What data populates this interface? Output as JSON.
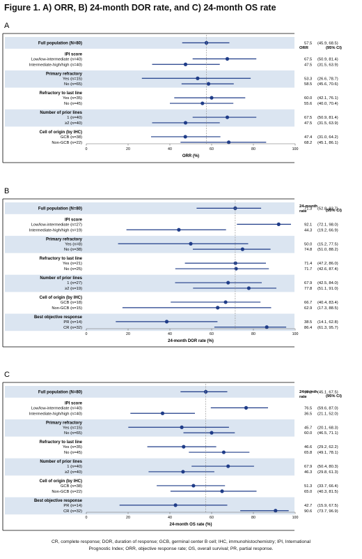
{
  "title": "Figure 1. A) ORR, B) 24-month DOR rate, and C) 24-month OS rate",
  "footnote": [
    "CR, complete response; DOR, duration of response; GCB, germinal center B cell; IHC, immunohistochemistry; IPI, International",
    "Prognostic Index; ORR, objective response rate; OS, overall survival; PR, partial response."
  ],
  "colors": {
    "band": "#dbe5f1",
    "marker": "#1f3c88",
    "frame": "#000000",
    "reference_line": "#999999"
  },
  "chart_data": [
    {
      "type": "forest",
      "panel": "A",
      "xlabel": "ORR (%)",
      "xlim": [
        0,
        100
      ],
      "xticks": [
        0,
        20,
        40,
        60,
        80,
        100
      ],
      "reference_value": 57.5,
      "col_headers": [
        "ORR",
        "(95% CI)"
      ],
      "groups": [
        {
          "title": "Full population (N=80)",
          "rows": [
            {
              "label": "",
              "estimate": 57.5,
              "ci": [
                45.9,
                68.5
              ],
              "value_text": "57.5",
              "ci_text": "(45.9, 68.5)"
            }
          ]
        },
        {
          "title": "IPI score",
          "rows": [
            {
              "label": "Low/low-intermediate (n=40)",
              "estimate": 67.5,
              "ci": [
                50.9,
                81.4
              ],
              "value_text": "67.5",
              "ci_text": "(50.9, 81.4)"
            },
            {
              "label": "Intermediate-high/high (n=40)",
              "estimate": 47.5,
              "ci": [
                31.5,
                63.9
              ],
              "value_text": "47.5",
              "ci_text": "(31.5, 63.9)"
            }
          ]
        },
        {
          "title": "Primary refractory",
          "rows": [
            {
              "label": "Yes (n=15)",
              "estimate": 53.3,
              "ci": [
                26.6,
                78.7
              ],
              "value_text": "53.3",
              "ci_text": "(26.6, 78.7)"
            },
            {
              "label": "No (n=65)",
              "estimate": 58.5,
              "ci": [
                45.6,
                70.6
              ],
              "value_text": "58.5",
              "ci_text": "(45.6, 70.6)"
            }
          ]
        },
        {
          "title": "Refractory to last line",
          "rows": [
            {
              "label": "Yes (n=35)",
              "estimate": 60.0,
              "ci": [
                42.1,
                76.1
              ],
              "value_text": "60.0",
              "ci_text": "(42.1, 76.1)"
            },
            {
              "label": "No (n=45)",
              "estimate": 55.6,
              "ci": [
                40.0,
                70.4
              ],
              "value_text": "55.6",
              "ci_text": "(40.0, 70.4)"
            }
          ]
        },
        {
          "title": "Number of prior lines",
          "rows": [
            {
              "label": "1 (n=40)",
              "estimate": 67.5,
              "ci": [
                50.9,
                81.4
              ],
              "value_text": "67.5",
              "ci_text": "(50.9, 81.4)"
            },
            {
              "label": "≥2 (n=40)",
              "estimate": 47.5,
              "ci": [
                31.5,
                63.9
              ],
              "value_text": "47.5",
              "ci_text": "(31.5, 63.9)"
            }
          ]
        },
        {
          "title": "Cell of origin (by IHC)",
          "rows": [
            {
              "label": "GCB (n=38)",
              "estimate": 47.4,
              "ci": [
                31.0,
                64.2
              ],
              "value_text": "47.4",
              "ci_text": "(31.0, 64.2)"
            },
            {
              "label": "Non-GCB (n=22)",
              "estimate": 68.2,
              "ci": [
                45.1,
                86.1
              ],
              "value_text": "68.2",
              "ci_text": "(45.1, 86.1)"
            }
          ]
        }
      ]
    },
    {
      "type": "forest",
      "panel": "B",
      "xlabel": "24-month DOR rate (%)",
      "xlim": [
        0,
        100
      ],
      "xticks": [
        0,
        20,
        40,
        60,
        80,
        100
      ],
      "reference_value": 71.3,
      "col_headers": [
        "24-month rate",
        "(95% CI)"
      ],
      "groups": [
        {
          "title": "Full population (N=80)",
          "rows": [
            {
              "label": "",
              "estimate": 71.3,
              "ci": [
                52.8,
                83.7
              ],
              "value_text": "71.3",
              "ci_text": "(52.8, 83.7)"
            }
          ]
        },
        {
          "title": "IPI score",
          "rows": [
            {
              "label": "Low/low-intermediate (n=27)",
              "estimate": 92.1,
              "ci": [
                72.1,
                98.0
              ],
              "value_text": "92.1",
              "ci_text": "(72.1, 98.0)"
            },
            {
              "label": "Intermediate-high/high (n=19)",
              "estimate": 44.3,
              "ci": [
                19.2,
                66.9
              ],
              "value_text": "44.3",
              "ci_text": "(19.2, 66.9)"
            }
          ]
        },
        {
          "title": "Primary refractory",
          "rows": [
            {
              "label": "Yes (n=8)",
              "estimate": 50.0,
              "ci": [
                15.2,
                77.5
              ],
              "value_text": "50.0",
              "ci_text": "(15.2, 77.5)"
            },
            {
              "label": "No (n=38)",
              "estimate": 74.8,
              "ci": [
                51.0,
                88.2
              ],
              "value_text": "74.8",
              "ci_text": "(51.0, 88.2)"
            }
          ]
        },
        {
          "title": "Refractory to last line",
          "rows": [
            {
              "label": "Yes (n=21)",
              "estimate": 71.4,
              "ci": [
                47.2,
                86.0
              ],
              "value_text": "71.4",
              "ci_text": "(47.2, 86.0)"
            },
            {
              "label": "No (n=25)",
              "estimate": 71.7,
              "ci": [
                42.6,
                87.4
              ],
              "value_text": "71.7",
              "ci_text": "(42.6, 87.4)"
            }
          ]
        },
        {
          "title": "Number of prior lines",
          "rows": [
            {
              "label": "1 (n=27)",
              "estimate": 67.9,
              "ci": [
                42.5,
                84.0
              ],
              "value_text": "67.9",
              "ci_text": "(42.5, 84.0)"
            },
            {
              "label": "≥2 (n=19)",
              "estimate": 77.8,
              "ci": [
                51.1,
                91.0
              ],
              "value_text": "77.8",
              "ci_text": "(51.1, 91.0)"
            }
          ]
        },
        {
          "title": "Cell of origin (by IHC)",
          "rows": [
            {
              "label": "GCB (n=18)",
              "estimate": 66.7,
              "ci": [
                40.4,
                83.4
              ],
              "value_text": "66.7",
              "ci_text": "(40.4, 83.4)"
            },
            {
              "label": "Non-GCB (n=15)",
              "estimate": 62.9,
              "ci": [
                17.3,
                88.5
              ],
              "value_text": "62.9",
              "ci_text": "(17.3, 88.5)"
            }
          ]
        },
        {
          "title": "Best objective response",
          "rows": [
            {
              "label": "PR (n=14)",
              "estimate": 38.5,
              "ci": [
                14.1,
                62.8
              ],
              "value_text": "38.5",
              "ci_text": "(14.1, 62.8)"
            },
            {
              "label": "CR (n=32)",
              "estimate": 86.4,
              "ci": [
                61.3,
                95.7
              ],
              "value_text": "86.4",
              "ci_text": "(61.3, 95.7)"
            }
          ]
        }
      ]
    },
    {
      "type": "forest",
      "panel": "C",
      "xlabel": "24-month OS rate (%)",
      "xlim": [
        0,
        100
      ],
      "xticks": [
        0,
        20,
        40,
        60,
        80,
        100
      ],
      "reference_value": 57.2,
      "col_headers": [
        "24-month rate",
        "(95% CI)"
      ],
      "groups": [
        {
          "title": "Full population (N=80)",
          "rows": [
            {
              "label": "",
              "estimate": 57.2,
              "ci": [
                45.1,
                67.5
              ],
              "value_text": "57.2",
              "ci_text": "(45.1, 67.5)"
            }
          ]
        },
        {
          "title": "IPI score",
          "rows": [
            {
              "label": "Low/low-intermediate (n=40)",
              "estimate": 76.5,
              "ci": [
                59.6,
                87.0
              ],
              "value_text": "76.5",
              "ci_text": "(59.6, 87.0)"
            },
            {
              "label": "Intermediate-high/high (n=40)",
              "estimate": 36.5,
              "ci": [
                21.1,
                52.0
              ],
              "value_text": "36.5",
              "ci_text": "(21.1, 52.0)"
            }
          ]
        },
        {
          "title": "Primary refractory",
          "rows": [
            {
              "label": "Yes (n=15)",
              "estimate": 45.7,
              "ci": [
                20.1,
                68.3
              ],
              "value_text": "45.7",
              "ci_text": "(20.1, 68.3)"
            },
            {
              "label": "No (n=65)",
              "estimate": 60.0,
              "ci": [
                46.5,
                71.1
              ],
              "value_text": "60.0",
              "ci_text": "(46.5, 71.1)"
            }
          ]
        },
        {
          "title": "Refractory to last line",
          "rows": [
            {
              "label": "Yes (n=35)",
              "estimate": 46.6,
              "ci": [
                29.2,
                62.2
              ],
              "value_text": "46.6",
              "ci_text": "(29.2, 62.2)"
            },
            {
              "label": "No (n=45)",
              "estimate": 65.8,
              "ci": [
                49.1,
                78.1
              ],
              "value_text": "65.8",
              "ci_text": "(49.1, 78.1)"
            }
          ]
        },
        {
          "title": "Number of prior lines",
          "rows": [
            {
              "label": "1 (n=40)",
              "estimate": 67.9,
              "ci": [
                50.4,
                80.3
              ],
              "value_text": "67.9",
              "ci_text": "(50.4, 80.3)"
            },
            {
              "label": "≥2 (n=40)",
              "estimate": 46.3,
              "ci": [
                29.8,
                61.3
              ],
              "value_text": "46.3",
              "ci_text": "(29.8, 61.3)"
            }
          ]
        },
        {
          "title": "Cell of origin (by IHC)",
          "rows": [
            {
              "label": "GCB (n=38)",
              "estimate": 51.3,
              "ci": [
                33.7,
                66.4
              ],
              "value_text": "51.3",
              "ci_text": "(33.7, 66.4)"
            },
            {
              "label": "Non-GCB (n=22)",
              "estimate": 65.0,
              "ci": [
                40.3,
                81.5
              ],
              "value_text": "65.0",
              "ci_text": "(40.3, 81.5)"
            }
          ]
        },
        {
          "title": "Best objective response",
          "rows": [
            {
              "label": "PR (n=14)",
              "estimate": 42.7,
              "ci": [
                15.9,
                67.5
              ],
              "value_text": "42.7",
              "ci_text": "(15.9, 67.5)"
            },
            {
              "label": "CR (n=32)",
              "estimate": 90.6,
              "ci": [
                73.7,
                96.9
              ],
              "value_text": "90.6",
              "ci_text": "(73.7, 96.9)"
            }
          ]
        }
      ]
    }
  ]
}
